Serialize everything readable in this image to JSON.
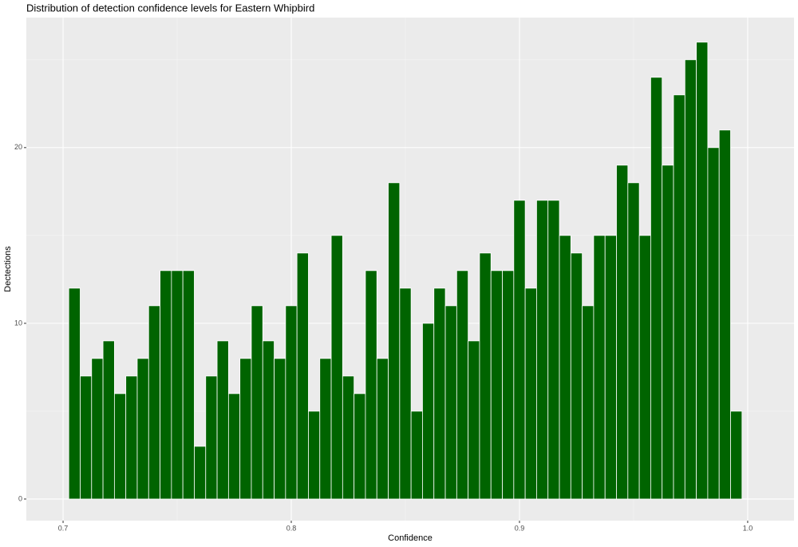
{
  "chart_data": {
    "type": "histogram",
    "title": "Distribution of detection confidence levels for Eastern Whipbird",
    "x_label": "Confidence",
    "y_label": "Dectections",
    "bins": [
      0.7025,
      0.7075,
      0.7125,
      0.7175,
      0.7225,
      0.7275,
      0.7325,
      0.7375,
      0.7425,
      0.7475,
      0.7525,
      0.7575,
      0.7625,
      0.7675,
      0.7725,
      0.7775,
      0.7825,
      0.7875,
      0.7925,
      0.7975,
      0.8025,
      0.8075,
      0.8125,
      0.8175,
      0.8225,
      0.8275,
      0.8325,
      0.8375,
      0.8425,
      0.8475,
      0.8525,
      0.8575,
      0.8625,
      0.8675,
      0.8725,
      0.8775,
      0.8825,
      0.8875,
      0.8925,
      0.8975,
      0.9025,
      0.9075,
      0.9125,
      0.9175,
      0.9225,
      0.9275,
      0.9325,
      0.9375,
      0.9425,
      0.9475,
      0.9525,
      0.9575,
      0.9625,
      0.9675,
      0.9725,
      0.9775,
      0.9825,
      0.9875,
      0.9925,
      0.9975
    ],
    "counts": [
      12,
      7,
      8,
      9,
      6,
      7,
      8,
      11,
      13,
      13,
      13,
      3,
      7,
      9,
      6,
      8,
      11,
      9,
      8,
      11,
      14,
      5,
      8,
      15,
      7,
      6,
      13,
      8,
      18,
      12,
      5,
      10,
      12,
      11,
      13,
      9,
      14,
      13,
      13,
      17,
      12,
      17,
      17,
      15,
      14,
      11,
      15,
      15,
      19,
      18,
      15,
      24,
      19,
      23,
      25,
      26,
      20,
      21,
      5
    ],
    "color": "#006400",
    "xlim": [
      0.6839,
      1.0203
    ],
    "ylim": [
      -1.23,
      27.4
    ],
    "xticks": [
      0.7,
      0.8,
      0.9,
      {
        "value": 1,
        "label": "1.0"
      }
    ],
    "yticks": [
      0,
      10,
      20
    ],
    "grid": true
  }
}
